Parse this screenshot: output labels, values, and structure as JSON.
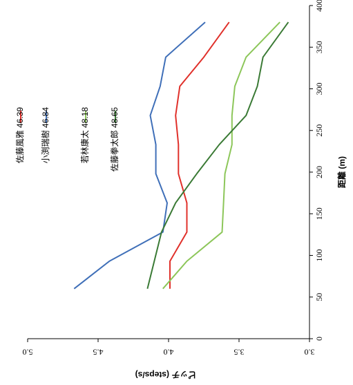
{
  "chart_data": {
    "type": "line",
    "xlabel": "距離 (m)",
    "ylabel": "ピッチ (steps/s)",
    "xlim": [
      0,
      400
    ],
    "ylim": [
      3.0,
      5.0
    ],
    "x_ticks": [
      "0",
      "50",
      "100",
      "150",
      "200",
      "250",
      "300",
      "350",
      "400"
    ],
    "y_ticks": [
      "3.0",
      "3.5",
      "4.0",
      "4.5",
      "5.0"
    ],
    "grid": false,
    "orientation": "rotated 90° counter-clockwise",
    "legend_position": "top-left",
    "series": [
      {
        "name": "佐藤風雅 46.39",
        "color": "#e0302a",
        "x": [
          60,
          93,
          128,
          163,
          198,
          233,
          268,
          303,
          338,
          380
        ],
        "y": [
          3.99,
          3.99,
          3.87,
          3.87,
          3.93,
          3.93,
          3.95,
          3.92,
          3.75,
          3.57
        ]
      },
      {
        "name": "小渕瑞樹 46.84",
        "color": "#3f6fb8",
        "x": [
          60,
          93,
          128,
          163,
          198,
          233,
          268,
          303,
          338,
          380
        ],
        "y": [
          4.67,
          4.42,
          4.04,
          4.01,
          4.09,
          4.09,
          4.13,
          4.06,
          4.02,
          3.74
        ]
      },
      {
        "name": "若林康太 48.18",
        "color": "#8cc659",
        "x": [
          60,
          93,
          128,
          163,
          198,
          233,
          268,
          303,
          338,
          380
        ],
        "y": [
          4.04,
          3.87,
          3.62,
          3.61,
          3.6,
          3.55,
          3.55,
          3.53,
          3.45,
          3.21
        ]
      },
      {
        "name": "佐藤拳太郎 48.65",
        "color": "#3a7a35",
        "x": [
          60,
          128,
          163,
          198,
          233,
          268,
          303,
          338,
          380
        ],
        "y": [
          4.15,
          4.05,
          3.95,
          3.8,
          3.64,
          3.45,
          3.37,
          3.33,
          3.15
        ]
      }
    ]
  }
}
